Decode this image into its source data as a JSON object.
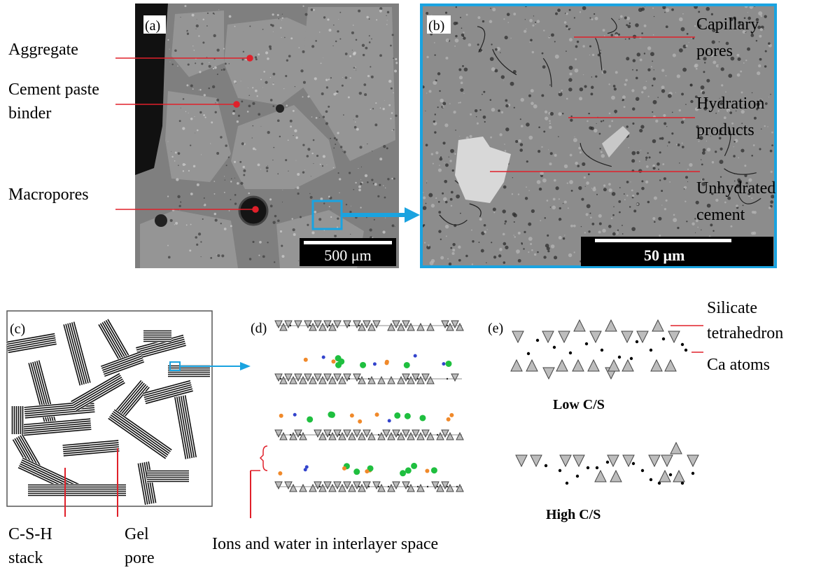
{
  "panel_a": {
    "tag": "(a)",
    "labels": [
      [
        "Aggregate"
      ],
      [
        "Cement paste",
        "binder"
      ],
      [
        "Macropores"
      ]
    ],
    "scale_bar": "500 μm"
  },
  "panel_b": {
    "tag": "(b)",
    "labels": [
      [
        "Capillary",
        "pores"
      ],
      [
        "Hydration",
        "products"
      ],
      [
        "Unhydrated",
        "cement"
      ]
    ],
    "scale_bar": "50 μm"
  },
  "panel_c": {
    "tag": "(c)",
    "labels": [
      [
        "C-S-H",
        "stack"
      ],
      [
        "Gel",
        "pore"
      ]
    ]
  },
  "panel_d": {
    "tag": "(d)",
    "caption": "Ions and water in interlayer space"
  },
  "panel_e": {
    "tag": "(e)",
    "labels": [
      [
        "Silicate",
        "tetrahedron"
      ],
      [
        "Ca atoms"
      ]
    ],
    "low": "Low C/S",
    "high": "High C/S"
  }
}
